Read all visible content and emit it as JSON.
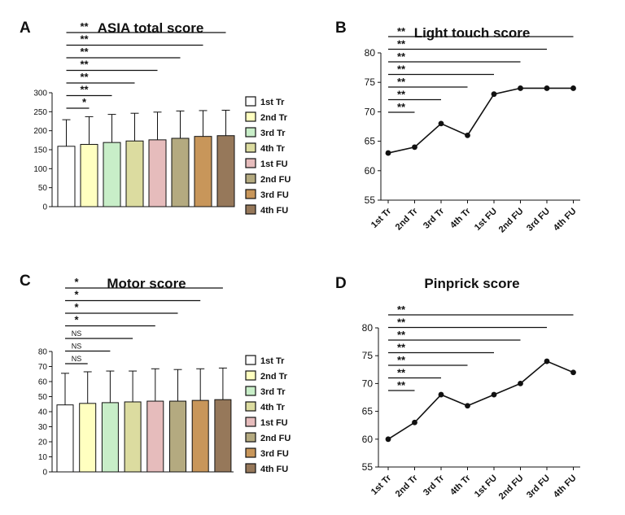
{
  "colors": {
    "bars": [
      "#ffffff",
      "#ffffc0",
      "#c8eec8",
      "#dcdca0",
      "#e6bcbc",
      "#b4aa80",
      "#c8965a",
      "#96785a"
    ],
    "axis": "#111111",
    "line": "#111111"
  },
  "chart_data": [
    {
      "panel": "A",
      "type": "bar",
      "title": "ASIA total score",
      "categories": [
        "1st Tr",
        "2nd Tr",
        "3rd Tr",
        "4th Tr",
        "1st FU",
        "2nd FU",
        "3rd FU",
        "4th FU"
      ],
      "values": [
        159,
        164,
        169,
        173,
        176,
        180,
        185,
        187
      ],
      "error_upper": [
        229,
        237,
        243,
        246,
        249,
        252,
        253,
        254
      ],
      "ylim": [
        0,
        300
      ],
      "yticks": [
        0,
        50,
        100,
        150,
        200,
        250,
        300
      ],
      "legend": [
        "1st Tr",
        "2nd Tr",
        "3rd Tr",
        "4th Tr",
        "1st FU",
        "2nd FU",
        "3rd FU",
        "4th FU"
      ],
      "legend_position": "right",
      "significance": [
        {
          "from": 0,
          "to": 1,
          "label": "*"
        },
        {
          "from": 0,
          "to": 2,
          "label": "**"
        },
        {
          "from": 0,
          "to": 3,
          "label": "**"
        },
        {
          "from": 0,
          "to": 4,
          "label": "**"
        },
        {
          "from": 0,
          "to": 5,
          "label": "**"
        },
        {
          "from": 0,
          "to": 6,
          "label": "**"
        },
        {
          "from": 0,
          "to": 7,
          "label": "**"
        }
      ]
    },
    {
      "panel": "B",
      "type": "line",
      "title": "Light touch score",
      "categories": [
        "1st Tr",
        "2nd Tr",
        "3rd Tr",
        "4th Tr",
        "1st FU",
        "2nd FU",
        "3rd FU",
        "4th FU"
      ],
      "values": [
        63,
        64,
        68,
        66,
        73,
        74,
        74,
        74
      ],
      "ylim": [
        55,
        80
      ],
      "yticks": [
        55,
        60,
        65,
        70,
        75,
        80
      ],
      "significance": [
        {
          "from": 0,
          "to": 1,
          "label": "**"
        },
        {
          "from": 0,
          "to": 2,
          "label": "**"
        },
        {
          "from": 0,
          "to": 3,
          "label": "**"
        },
        {
          "from": 0,
          "to": 4,
          "label": "**"
        },
        {
          "from": 0,
          "to": 5,
          "label": "**"
        },
        {
          "from": 0,
          "to": 6,
          "label": "**"
        },
        {
          "from": 0,
          "to": 7,
          "label": "**"
        }
      ]
    },
    {
      "panel": "C",
      "type": "bar",
      "title": "Motor score",
      "categories": [
        "1st Tr",
        "2nd Tr",
        "3rd Tr",
        "4th Tr",
        "1st FU",
        "2nd FU",
        "3rd FU",
        "4th FU"
      ],
      "values": [
        44.5,
        45.5,
        46,
        46.5,
        47,
        47,
        47.5,
        48
      ],
      "error_upper": [
        65.5,
        66.5,
        67,
        67,
        68.5,
        68,
        68.5,
        69
      ],
      "ylim": [
        0,
        80
      ],
      "yticks": [
        0,
        10,
        20,
        30,
        40,
        50,
        60,
        70,
        80
      ],
      "legend": [
        "1st Tr",
        "2nd Tr",
        "3rd Tr",
        "4th Tr",
        "1st FU",
        "2nd FU",
        "3rd FU",
        "4th FU"
      ],
      "legend_position": "right",
      "significance": [
        {
          "from": 0,
          "to": 1,
          "label": "NS"
        },
        {
          "from": 0,
          "to": 2,
          "label": "NS"
        },
        {
          "from": 0,
          "to": 3,
          "label": "NS"
        },
        {
          "from": 0,
          "to": 4,
          "label": "*"
        },
        {
          "from": 0,
          "to": 5,
          "label": "*"
        },
        {
          "from": 0,
          "to": 6,
          "label": "*"
        },
        {
          "from": 0,
          "to": 7,
          "label": "*"
        }
      ]
    },
    {
      "panel": "D",
      "type": "line",
      "title": "Pinprick score",
      "categories": [
        "1st Tr",
        "2nd Tr",
        "3rd Tr",
        "4th Tr",
        "1st FU",
        "2nd FU",
        "3rd FU",
        "4th FU"
      ],
      "values": [
        60,
        63,
        68,
        66,
        68,
        70,
        74,
        72
      ],
      "ylim": [
        55,
        80
      ],
      "yticks": [
        55,
        60,
        65,
        70,
        75,
        80
      ],
      "significance": [
        {
          "from": 0,
          "to": 1,
          "label": "**"
        },
        {
          "from": 0,
          "to": 2,
          "label": "**"
        },
        {
          "from": 0,
          "to": 3,
          "label": "**"
        },
        {
          "from": 0,
          "to": 4,
          "label": "**"
        },
        {
          "from": 0,
          "to": 5,
          "label": "**"
        },
        {
          "from": 0,
          "to": 6,
          "label": "**"
        },
        {
          "from": 0,
          "to": 7,
          "label": "**"
        }
      ]
    }
  ]
}
